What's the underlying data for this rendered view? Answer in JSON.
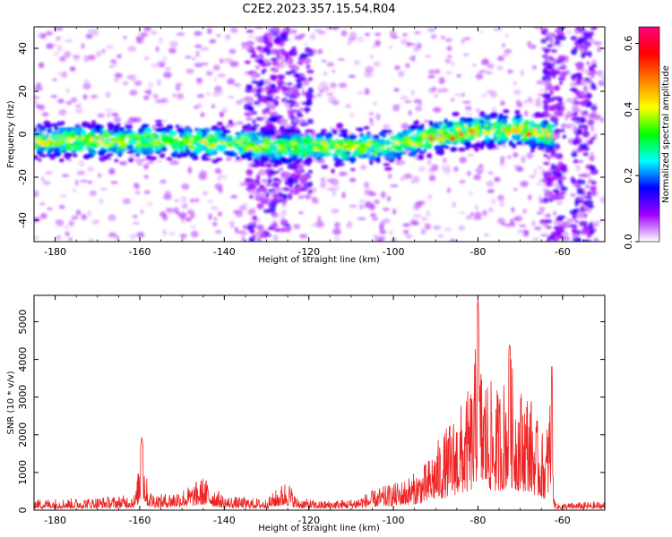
{
  "figure": {
    "title": "C2E2.2023.357.15.54.R04"
  },
  "chart_data": [
    {
      "type": "heatmap",
      "xlabel": "Height of straight line (km)",
      "ylabel": "Frequency (Hz)",
      "xlim": [
        -185,
        -50
      ],
      "ylim": [
        -50,
        50
      ],
      "xticks": [
        -180,
        -160,
        -140,
        -120,
        -100,
        -80,
        -60
      ],
      "yticks": [
        -40,
        -20,
        0,
        20,
        40
      ],
      "grid": false,
      "colorbar": {
        "label": "Normalized spectral amplitude",
        "range": [
          0,
          0.65
        ],
        "ticks": [
          0.0,
          0.2,
          0.4,
          0.6
        ],
        "colors": [
          "#ffffff",
          "#a000ff",
          "#0000ff",
          "#00ffff",
          "#00ff00",
          "#ffff00",
          "#ff8000",
          "#ff0000",
          "#ff0080"
        ]
      },
      "band_centers": [
        {
          "x": -185,
          "y": -3
        },
        {
          "x": -170,
          "y": -3
        },
        {
          "x": -155,
          "y": -3
        },
        {
          "x": -140,
          "y": -4
        },
        {
          "x": -125,
          "y": -6
        },
        {
          "x": -110,
          "y": -6
        },
        {
          "x": -100,
          "y": -5
        },
        {
          "x": -90,
          "y": -1
        },
        {
          "x": -80,
          "y": 2
        },
        {
          "x": -70,
          "y": 2
        },
        {
          "x": -62,
          "y": 0
        }
      ],
      "peaks": [
        {
          "x": -91,
          "y": -2,
          "value": 0.5
        },
        {
          "x": -86,
          "y": -2,
          "value": 0.55
        },
        {
          "x": -84,
          "y": 0,
          "value": 0.5
        },
        {
          "x": -68,
          "y": 0,
          "value": 0.6
        },
        {
          "x": -78,
          "y": 4,
          "value": 0.35
        }
      ],
      "noise_columns": [
        {
          "x": -132,
          "from": -50,
          "to": 50
        },
        {
          "x": -127,
          "from": -45,
          "to": 50
        },
        {
          "x": -122,
          "from": -30,
          "to": 40
        },
        {
          "x": -62,
          "to": 50,
          "from": -50
        },
        {
          "x": -55,
          "from": -50,
          "to": 50
        }
      ]
    },
    {
      "type": "line",
      "xlabel": "Height of straight line (km)",
      "ylabel": "SNR (10 * v/v)",
      "xlim": [
        -185,
        -50
      ],
      "ylim": [
        0,
        5700
      ],
      "xticks": [
        -180,
        -160,
        -140,
        -120,
        -100,
        -80,
        -60
      ],
      "yticks": [
        0,
        1000,
        2000,
        3000,
        4000,
        5000
      ],
      "grid": false,
      "series": [
        {
          "color": "#ee2222",
          "envelope_x": [
            -185,
            -175,
            -165,
            -161,
            -159.5,
            -158,
            -155,
            -148,
            -145,
            -140,
            -130,
            -125,
            -123,
            -118,
            -110,
            -102,
            -98,
            -95,
            -92,
            -90,
            -88,
            -85,
            -83,
            -81,
            -80,
            -79.5,
            -78,
            -76,
            -74,
            -72.5,
            -71.5,
            -70,
            -68,
            -66,
            -64,
            -62.5,
            -62,
            -61,
            -55,
            -50
          ],
          "envelope_y": [
            300,
            320,
            380,
            450,
            1950,
            550,
            420,
            650,
            900,
            380,
            300,
            850,
            350,
            250,
            300,
            650,
            800,
            1000,
            1300,
            1800,
            2100,
            2700,
            3000,
            3600,
            5650,
            4100,
            3700,
            3200,
            3500,
            4400,
            3500,
            3300,
            3300,
            2400,
            1900,
            3900,
            300,
            180,
            220,
            230
          ]
        }
      ]
    }
  ]
}
